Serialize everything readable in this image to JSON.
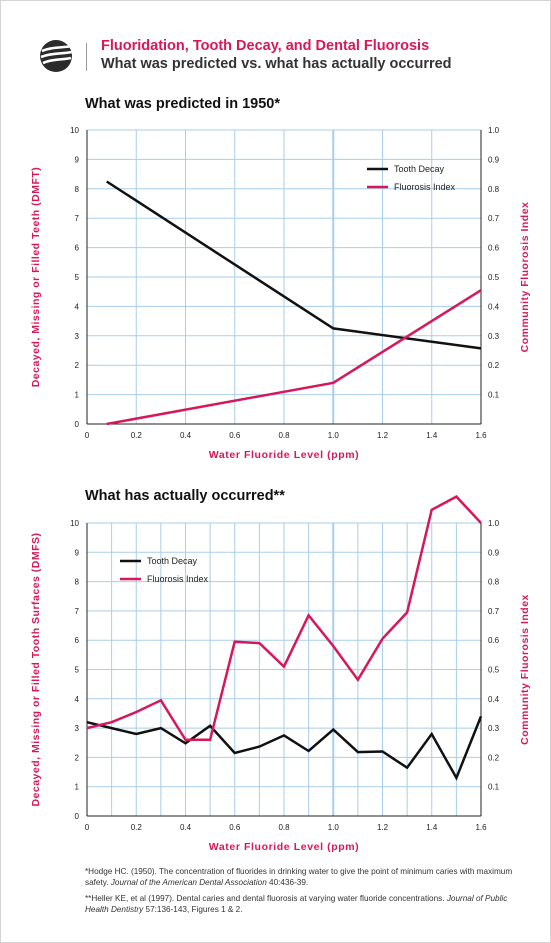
{
  "header": {
    "title": "Fluoridation, Tooth Decay, and Dental Fluorosis",
    "subtitle": "What was predicted vs. what has actually occurred"
  },
  "colors": {
    "accent": "#d6185a",
    "tooth_decay": "#111111",
    "fluorosis": "#d6185a",
    "grid": "#a9cdea"
  },
  "chart_data": [
    {
      "type": "line",
      "title": "What was predicted in 1950*",
      "xlabel": "Water Fluoride Level (ppm)",
      "ylabel": "Decayed, Missing or Filled Teeth (DMFT)",
      "y2label": "Community Fluorosis Index",
      "xlim": [
        0,
        1.6
      ],
      "ylim": [
        0,
        10
      ],
      "y2lim": [
        0,
        1.0
      ],
      "x_ticks": [
        "0",
        "0.2",
        "0.4",
        "0.6",
        "0.8",
        "1.0",
        "1.2",
        "1.4",
        "1.6"
      ],
      "y_ticks": [
        "1",
        "2",
        "3",
        "4",
        "5",
        "6",
        "7",
        "8",
        "9",
        "10"
      ],
      "y2_ticks": [
        "0.1",
        "0.2",
        "0.3",
        "0.4",
        "0.5",
        "0.6",
        "0.7",
        "0.8",
        "0.9",
        "1.0"
      ],
      "grid": true,
      "legend_position": "top-right",
      "series": [
        {
          "name": "Tooth Decay",
          "axis": "left",
          "color": "#111111",
          "points": [
            [
              0.08,
              8.25
            ],
            [
              1.0,
              3.25
            ],
            [
              1.6,
              2.57
            ]
          ]
        },
        {
          "name": "Fluorosis Index",
          "axis": "right",
          "color": "#d6185a",
          "points": [
            [
              0.08,
              0.0
            ],
            [
              1.0,
              0.14
            ],
            [
              1.6,
              0.455
            ]
          ]
        }
      ]
    },
    {
      "type": "line",
      "title": "What has actually occurred**",
      "xlabel": "Water Fluoride Level (ppm)",
      "ylabel": "Decayed, Missing or Filled Tooth Surfaces (DMFS)",
      "y2label": "Community Fluorosis Index",
      "xlim": [
        0,
        1.6
      ],
      "ylim": [
        0,
        10
      ],
      "y2lim": [
        0,
        1.0
      ],
      "x_ticks": [
        "0",
        "0.1",
        "0.2",
        "0.3",
        "0.4",
        "0.5",
        "0.6",
        "0.7",
        "0.8",
        "0.9",
        "1.0",
        "1.1",
        "1.2",
        "1.3",
        "1.4",
        "1.5",
        "1.6"
      ],
      "x_tick_labels": [
        "0",
        "",
        "0.2",
        "",
        "0.4",
        "",
        "0.6",
        "",
        "0.8",
        "",
        "1.0",
        "",
        "1.2",
        "",
        "1.4",
        "",
        "1.6"
      ],
      "y_ticks": [
        "1",
        "2",
        "3",
        "4",
        "5",
        "6",
        "7",
        "8",
        "9",
        "10"
      ],
      "y2_ticks": [
        "0.1",
        "0.2",
        "0.3",
        "0.4",
        "0.5",
        "0.6",
        "0.7",
        "0.8",
        "0.9",
        "1.0"
      ],
      "grid": true,
      "legend_position": "top-left",
      "series": [
        {
          "name": "Tooth Decay",
          "axis": "left",
          "color": "#111111",
          "points": [
            [
              0,
              3.2
            ],
            [
              0.1,
              3.0
            ],
            [
              0.2,
              2.8
            ],
            [
              0.3,
              3.0
            ],
            [
              0.4,
              2.48
            ],
            [
              0.5,
              3.08
            ],
            [
              0.6,
              2.15
            ],
            [
              0.7,
              2.37
            ],
            [
              0.8,
              2.75
            ],
            [
              0.9,
              2.22
            ],
            [
              1.0,
              2.95
            ],
            [
              1.1,
              2.18
            ],
            [
              1.2,
              2.2
            ],
            [
              1.3,
              1.65
            ],
            [
              1.4,
              2.8
            ],
            [
              1.5,
              1.3
            ],
            [
              1.6,
              3.4
            ]
          ]
        },
        {
          "name": "Fluorosis Index",
          "axis": "right",
          "color": "#d6185a",
          "points": [
            [
              0,
              0.3
            ],
            [
              0.1,
              0.32
            ],
            [
              0.2,
              0.355
            ],
            [
              0.3,
              0.395
            ],
            [
              0.4,
              0.26
            ],
            [
              0.5,
              0.26
            ],
            [
              0.6,
              0.595
            ],
            [
              0.7,
              0.59
            ],
            [
              0.8,
              0.51
            ],
            [
              0.9,
              0.685
            ],
            [
              1.0,
              0.58
            ],
            [
              1.1,
              0.465
            ],
            [
              1.2,
              0.605
            ],
            [
              1.3,
              0.695
            ],
            [
              1.4,
              1.045
            ],
            [
              1.5,
              1.09
            ],
            [
              1.6,
              1.0
            ]
          ]
        }
      ]
    }
  ],
  "footnotes": {
    "note1": {
      "text": "*Hodge HC. (1950). The concentration of fluorides in drinking water to give the point of minimum caries with maximum safety. ",
      "journal": "Journal of the American Dental Association",
      "citation": " 40:436-39."
    },
    "note2": {
      "text": "**Heller KE, et al (1997). Dental caries and dental fluorosis at varying water fluoride concentrations. ",
      "journal": "Journal of Public Health Dentistry",
      "citation": " 57:136-143, Figures 1 & 2."
    }
  }
}
